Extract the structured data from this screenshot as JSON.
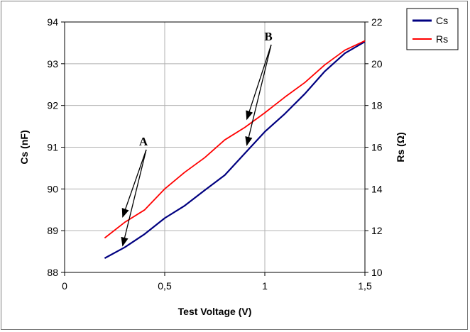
{
  "chart_data": {
    "type": "line",
    "xlabel": "Test Voltage (V)",
    "ylabel_left": "Cs (nF)",
    "ylabel_right": "Rs (Ω)",
    "xlim": [
      0,
      1.5
    ],
    "ylim_left": [
      88,
      94
    ],
    "ylim_right": [
      10,
      22
    ],
    "x_ticks": [
      "0",
      "0,5",
      "1",
      "1,5"
    ],
    "x_tick_values": [
      0,
      0.5,
      1,
      1.5
    ],
    "y_left_ticks": [
      "88",
      "89",
      "90",
      "91",
      "92",
      "93",
      "94"
    ],
    "y_left_tick_values": [
      88,
      89,
      90,
      91,
      92,
      93,
      94
    ],
    "y_right_ticks": [
      "10",
      "12",
      "14",
      "16",
      "18",
      "20",
      "22"
    ],
    "y_right_tick_values": [
      10,
      12,
      14,
      16,
      18,
      20,
      22
    ],
    "grid": true,
    "legend_position": "top-right",
    "series": [
      {
        "name": "Cs",
        "axis": "left",
        "color": "#000080",
        "x": [
          0.2,
          0.3,
          0.4,
          0.5,
          0.6,
          0.7,
          0.8,
          0.9,
          1.0,
          1.1,
          1.2,
          1.3,
          1.4,
          1.5
        ],
        "y": [
          88.34,
          88.6,
          88.92,
          89.3,
          89.6,
          89.97,
          90.33,
          90.85,
          91.37,
          91.8,
          92.28,
          92.82,
          93.25,
          93.53
        ]
      },
      {
        "name": "Rs",
        "axis": "right",
        "color": "#ff0000",
        "x": [
          0.2,
          0.3,
          0.4,
          0.5,
          0.6,
          0.7,
          0.8,
          0.9,
          1.0,
          1.1,
          1.2,
          1.3,
          1.4,
          1.5
        ],
        "y": [
          11.65,
          12.4,
          13.0,
          14.0,
          14.8,
          15.5,
          16.35,
          16.95,
          17.65,
          18.4,
          19.1,
          19.95,
          20.65,
          21.1
        ]
      }
    ],
    "annotations": [
      {
        "label": "A",
        "targets": [
          [
            0.29,
            88.64
          ],
          [
            0.29,
            89.33
          ]
        ]
      },
      {
        "label": "B",
        "targets": [
          [
            0.91,
            91.05
          ],
          [
            0.91,
            91.67
          ]
        ]
      }
    ]
  }
}
